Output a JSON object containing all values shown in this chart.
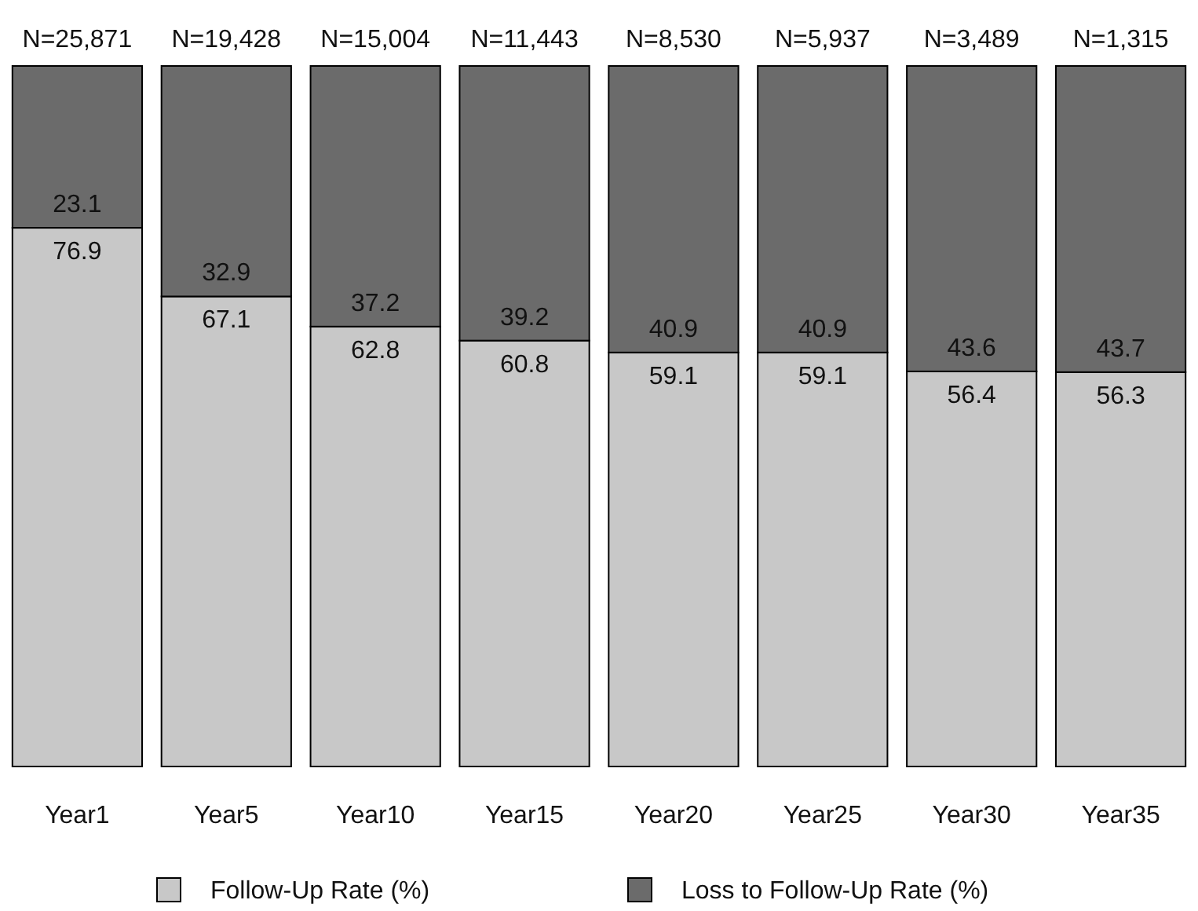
{
  "chart_data": {
    "type": "bar",
    "stacked": true,
    "data_labels": true,
    "legend": "bottom",
    "categories": [
      "Year1",
      "Year5",
      "Year10",
      "Year15",
      "Year20",
      "Year25",
      "Year30",
      "Year35"
    ],
    "series": [
      {
        "name": "Follow-Up Rate (%)",
        "color": "#c8c8c8",
        "values": [
          76.9,
          67.1,
          62.8,
          60.8,
          59.1,
          59.1,
          56.4,
          56.3
        ]
      },
      {
        "name": "Loss to Follow-Up Rate (%)",
        "color": "#6b6b6b",
        "values": [
          23.1,
          32.9,
          37.2,
          39.2,
          40.9,
          40.9,
          43.6,
          43.7
        ]
      }
    ],
    "annotations": [
      {
        "text": "N=25,871",
        "x": "Year1",
        "y": 100
      },
      {
        "text": "N=19,428",
        "x": "Year5",
        "y": 100
      },
      {
        "text": "N=15,004",
        "x": "Year10",
        "y": 100
      },
      {
        "text": "N=11,443",
        "x": "Year15",
        "y": 100
      },
      {
        "text": "N=8,530",
        "x": "Year20",
        "y": 100
      },
      {
        "text": "N=5,937",
        "x": "Year25",
        "y": 100
      },
      {
        "text": "N=3,489",
        "x": "Year30",
        "y": 100
      },
      {
        "text": "N=1,315",
        "x": "Year35",
        "y": 100
      }
    ]
  }
}
